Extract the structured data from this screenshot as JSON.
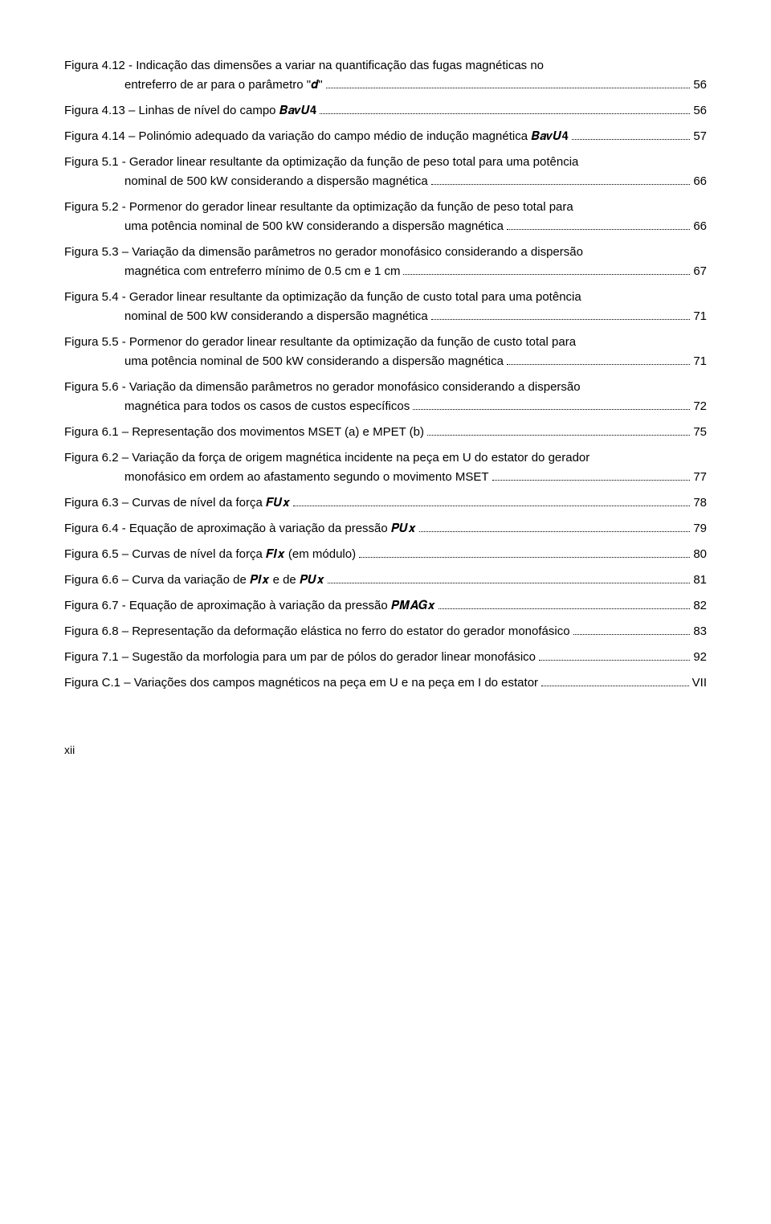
{
  "entries": [
    {
      "lines": [
        {
          "text": "Figura 4.12 - Indicação das dimensões a variar na quantificação das fugas magnéticas no",
          "indent": 0
        },
        {
          "text": "entreferro de ar para o parâmetro \"𝒅\"",
          "indent": 1,
          "page": "56"
        }
      ]
    },
    {
      "lines": [
        {
          "text": "Figura 4.13 – Linhas de nível do campo 𝑩𝒂𝒗𝑼𝟒",
          "indent": 0,
          "page": "56"
        }
      ]
    },
    {
      "lines": [
        {
          "text": "Figura 4.14 – Polinómio adequado da variação do campo médio de indução magnética 𝑩𝒂𝒗𝑼𝟒",
          "indent": 0,
          "page": "57"
        }
      ]
    },
    {
      "lines": [
        {
          "text": "Figura 5.1 - Gerador linear resultante da optimização da função de peso total para uma potência",
          "indent": 0
        },
        {
          "text": "nominal de 500 kW considerando a dispersão magnética",
          "indent": 1,
          "page": "66"
        }
      ]
    },
    {
      "lines": [
        {
          "text": "Figura 5.2 - Pormenor do gerador linear resultante da optimização da função de peso total para",
          "indent": 0
        },
        {
          "text": "uma potência nominal de 500 kW considerando a dispersão magnética",
          "indent": 1,
          "page": "66"
        }
      ]
    },
    {
      "lines": [
        {
          "text": "Figura 5.3 – Variação da dimensão parâmetros no gerador monofásico considerando a dispersão",
          "indent": 0
        },
        {
          "text": "magnética com entreferro mínimo de 0.5 cm e 1 cm",
          "indent": 1,
          "page": "67"
        }
      ]
    },
    {
      "lines": [
        {
          "text": "Figura 5.4 - Gerador linear resultante da optimização da função de custo total para uma potência",
          "indent": 0
        },
        {
          "text": "nominal de 500 kW considerando a dispersão magnética",
          "indent": 1,
          "page": "71"
        }
      ]
    },
    {
      "lines": [
        {
          "text": "Figura 5.5 - Pormenor do gerador linear resultante da optimização da função de custo total para",
          "indent": 0
        },
        {
          "text": "uma potência nominal de 500 kW considerando a dispersão magnética",
          "indent": 1,
          "page": "71"
        }
      ]
    },
    {
      "lines": [
        {
          "text": "Figura 5.6 - Variação da dimensão parâmetros no gerador monofásico considerando a dispersão",
          "indent": 0
        },
        {
          "text": "magnética para todos os casos de custos específicos",
          "indent": 1,
          "page": "72"
        }
      ]
    },
    {
      "lines": [
        {
          "text": "Figura 6.1 – Representação dos movimentos MSET (a) e MPET (b)",
          "indent": 0,
          "page": "75"
        }
      ]
    },
    {
      "lines": [
        {
          "text": "Figura 6.2 – Variação da força de origem magnética incidente na peça em U do estator do gerador",
          "indent": 0
        },
        {
          "text": "monofásico em ordem ao afastamento segundo o movimento MSET",
          "indent": 1,
          "page": "77"
        }
      ]
    },
    {
      "lines": [
        {
          "text": "Figura 6.3 – Curvas de nível da força 𝑭𝑼𝒙",
          "indent": 0,
          "page": "78"
        }
      ]
    },
    {
      "lines": [
        {
          "text": "Figura 6.4 - Equação de aproximação à variação da pressão 𝑷𝑼𝒙",
          "indent": 0,
          "page": "79"
        }
      ]
    },
    {
      "lines": [
        {
          "text": "Figura 6.5 – Curvas de nível da força 𝑭𝑰𝒙 (em módulo)",
          "indent": 0,
          "page": "80"
        }
      ]
    },
    {
      "lines": [
        {
          "text": "Figura 6.6 – Curva da variação de 𝑷𝑰𝒙 e de 𝑷𝑼𝒙",
          "indent": 0,
          "page": "81"
        }
      ]
    },
    {
      "lines": [
        {
          "text": "Figura 6.7 - Equação de aproximação à variação da pressão 𝑷𝑴𝑨𝑮𝒙",
          "indent": 0,
          "page": "82"
        }
      ]
    },
    {
      "lines": [
        {
          "text": "Figura 6.8 – Representação da deformação elástica no ferro do estator do gerador monofásico",
          "indent": 0,
          "page": "83"
        }
      ]
    },
    {
      "lines": [
        {
          "text": "Figura 7.1 – Sugestão da morfologia para um par de pólos do gerador linear monofásico",
          "indent": 0,
          "page": "92"
        }
      ]
    },
    {
      "lines": [
        {
          "text": "Figura C.1 – Variações dos campos magnéticos na peça em U e na peça em I do estator",
          "indent": 0,
          "page": "VII"
        }
      ]
    }
  ],
  "page_number": "xii"
}
